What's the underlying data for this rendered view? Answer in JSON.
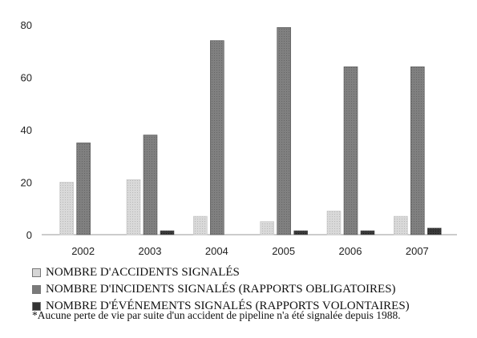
{
  "chart_data": {
    "type": "bar",
    "categories": [
      "2002",
      "2003",
      "2004",
      "2005",
      "2006",
      "2007"
    ],
    "series": [
      {
        "name": "NOMBRE D'ACCIDENTS SIGNALÉS",
        "values": [
          20,
          21,
          7,
          5,
          9,
          7
        ],
        "color": "#d6d6d6"
      },
      {
        "name": "NOMBRE D'INCIDENTS SIGNALÉS (RAPPORTS OBLIGATOIRES)",
        "values": [
          35,
          38,
          74,
          79,
          64,
          64
        ],
        "color": "#7a7a7a"
      },
      {
        "name": "NOMBRE D'ÉVÉNEMENTS SIGNALÉS (RAPPORTS VOLONTAIRES)",
        "values": [
          0,
          1.5,
          0,
          1.5,
          1.5,
          2.5
        ],
        "color": "#333333"
      }
    ],
    "yticks": [
      0,
      20,
      40,
      60,
      80
    ],
    "ylim": [
      0,
      82
    ],
    "grid": false,
    "legend_position": "bottom"
  },
  "footnote": "*Aucune perte de vie par suite d'un accident de pipeline n'a été signalée depuis 1988."
}
